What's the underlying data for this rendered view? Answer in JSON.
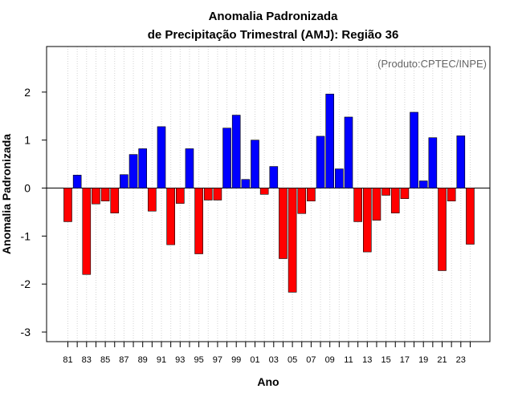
{
  "chart_data": {
    "type": "bar",
    "title_line1": "Anomalia Padronizada",
    "title_line2": "de Precipitação Trimestral (AMJ): Região 36",
    "credit": "(Produto:CPTEC/INPE)",
    "xlabel": "Ano",
    "ylabel": "Anomalia Padronizada",
    "ylim": [
      -3.2,
      2.95
    ],
    "yticks": [
      -3,
      -2,
      -1,
      0,
      1,
      2
    ],
    "ytick_labels": [
      "-3",
      "-2",
      "-1",
      "0",
      "1",
      "2"
    ],
    "years": [
      1981,
      1982,
      1983,
      1984,
      1985,
      1986,
      1987,
      1988,
      1989,
      1990,
      1991,
      1992,
      1993,
      1994,
      1995,
      1996,
      1997,
      1998,
      1999,
      2000,
      2001,
      2002,
      2003,
      2004,
      2005,
      2006,
      2007,
      2008,
      2009,
      2010,
      2011,
      2012,
      2013,
      2014,
      2015,
      2016,
      2017,
      2018,
      2019,
      2020,
      2021,
      2022,
      2023,
      2024
    ],
    "xtick_labels": [
      "81",
      "83",
      "85",
      "87",
      "89",
      "91",
      "93",
      "95",
      "97",
      "99",
      "01",
      "03",
      "05",
      "07",
      "09",
      "11",
      "13",
      "15",
      "17",
      "19",
      "21",
      "23"
    ],
    "values": [
      -0.7,
      0.27,
      -1.8,
      -0.33,
      -0.27,
      -0.52,
      0.28,
      0.7,
      0.82,
      -0.48,
      1.28,
      -1.18,
      -0.32,
      0.82,
      -1.37,
      -0.25,
      -0.25,
      1.25,
      1.52,
      0.18,
      1.0,
      -0.13,
      0.45,
      -1.47,
      -2.17,
      -0.53,
      -0.27,
      1.08,
      1.96,
      0.4,
      1.48,
      -0.7,
      -1.33,
      -0.67,
      -0.15,
      -0.52,
      -0.22,
      1.58,
      0.15,
      1.05,
      -1.72,
      -0.27,
      1.09,
      -1.17
    ],
    "colors": {
      "positive": "#0000ff",
      "negative": "#ff0000",
      "axis": "#000000",
      "grid": "#d3d3d3",
      "credit": "#666666"
    }
  }
}
